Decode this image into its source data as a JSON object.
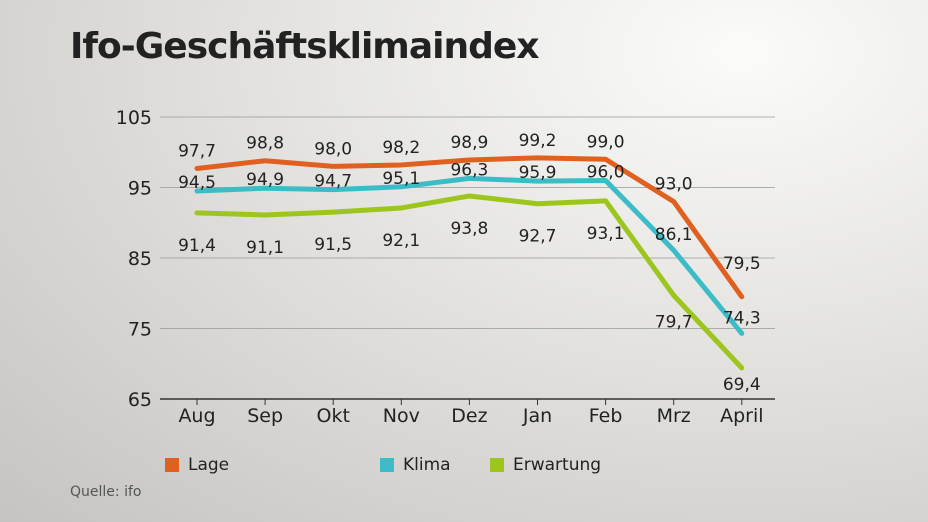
{
  "title": "Ifo-Geschäftsklimaindex",
  "source": "Quelle: ifo",
  "chart_data": {
    "type": "line",
    "title": "Ifo-Geschäftsklimaindex",
    "categories": [
      "Aug",
      "Sep",
      "Okt",
      "Nov",
      "Dez",
      "Jan",
      "Feb",
      "Mrz",
      "April"
    ],
    "ylim": [
      65,
      105
    ],
    "yticks": [
      105,
      95,
      85,
      75,
      65
    ],
    "grid": true,
    "legend_position": "bottom",
    "series": [
      {
        "name": "Lage",
        "color": "#e0601f",
        "values": [
          97.7,
          98.8,
          98.0,
          98.2,
          98.9,
          99.2,
          99.0,
          93.0,
          79.5
        ],
        "labels": [
          "97,7",
          "98,8",
          "98,0",
          "98,2",
          "98,9",
          "99,2",
          "99,0",
          "93,0",
          "79,5"
        ]
      },
      {
        "name": "Klima",
        "color": "#3bbcc6",
        "values": [
          94.5,
          94.9,
          94.7,
          95.1,
          96.3,
          95.9,
          96.0,
          86.1,
          74.3
        ],
        "labels": [
          "94,5",
          "94,9",
          "94,7",
          "95,1",
          "96,3",
          "95,9",
          "96,0",
          "86,1",
          "74,3"
        ]
      },
      {
        "name": "Erwartung",
        "color": "#9cc51d",
        "values": [
          91.4,
          91.1,
          91.5,
          92.1,
          93.8,
          92.7,
          93.1,
          79.7,
          69.4
        ],
        "labels": [
          "91,4",
          "91,1",
          "91,5",
          "92,1",
          "93,8",
          "92,7",
          "93,1",
          "79,7",
          "69,4"
        ]
      }
    ]
  }
}
